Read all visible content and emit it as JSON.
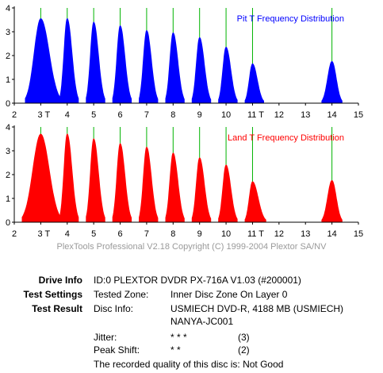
{
  "chart_data": [
    {
      "type": "area",
      "title": "Pit T Frequency Distribution",
      "x_ticks": [
        "2",
        "3 T",
        "4",
        "5",
        "6",
        "7",
        "8",
        "9",
        "10",
        "11 T",
        "12",
        "13",
        "14",
        "15"
      ],
      "y_ticks": [
        "0",
        "1",
        "2",
        "3",
        "4"
      ],
      "xlim": [
        2,
        15
      ],
      "ylim": [
        0,
        4
      ],
      "grid": false,
      "legend_position": "top-right",
      "color": "#0000ff",
      "marker_lines_at": [
        3,
        4,
        5,
        6,
        7,
        8,
        9,
        10,
        11,
        14
      ],
      "peaks": [
        {
          "x": 3,
          "height": 3.55,
          "from": 2.42,
          "to": 3.75
        },
        {
          "x": 4,
          "height": 3.55,
          "from": 3.72,
          "to": 4.42
        },
        {
          "x": 5,
          "height": 3.4,
          "from": 4.72,
          "to": 5.42
        },
        {
          "x": 6,
          "height": 3.25,
          "from": 5.72,
          "to": 6.42
        },
        {
          "x": 7,
          "height": 3.05,
          "from": 6.72,
          "to": 7.42
        },
        {
          "x": 8,
          "height": 2.95,
          "from": 7.72,
          "to": 8.42
        },
        {
          "x": 9,
          "height": 2.75,
          "from": 8.72,
          "to": 9.42
        },
        {
          "x": 10,
          "height": 2.35,
          "from": 9.72,
          "to": 10.42
        },
        {
          "x": 11,
          "height": 1.65,
          "from": 10.72,
          "to": 11.42
        },
        {
          "x": 14,
          "height": 1.75,
          "from": 13.62,
          "to": 14.38
        }
      ]
    },
    {
      "type": "area",
      "title": "Land T Frequency Distribution",
      "x_ticks": [
        "2",
        "3 T",
        "4",
        "5",
        "6",
        "7",
        "8",
        "9",
        "10",
        "11 T",
        "12",
        "13",
        "14",
        "15"
      ],
      "y_ticks": [
        "0",
        "1",
        "2",
        "3",
        "4"
      ],
      "xlim": [
        2,
        15
      ],
      "ylim": [
        0,
        4
      ],
      "grid": false,
      "legend_position": "top-right",
      "color": "#ff0000",
      "marker_lines_at": [
        3,
        4,
        5,
        6,
        7,
        8,
        9,
        10,
        11,
        14
      ],
      "peaks": [
        {
          "x": 3,
          "height": 3.7,
          "from": 2.3,
          "to": 3.75
        },
        {
          "x": 4,
          "height": 3.7,
          "from": 3.72,
          "to": 4.42
        },
        {
          "x": 5,
          "height": 3.5,
          "from": 4.72,
          "to": 5.42
        },
        {
          "x": 6,
          "height": 3.3,
          "from": 5.72,
          "to": 6.42
        },
        {
          "x": 7,
          "height": 3.15,
          "from": 6.72,
          "to": 7.42
        },
        {
          "x": 8,
          "height": 2.9,
          "from": 7.72,
          "to": 8.42
        },
        {
          "x": 9,
          "height": 2.7,
          "from": 8.72,
          "to": 9.42
        },
        {
          "x": 10,
          "height": 2.4,
          "from": 9.72,
          "to": 10.42
        },
        {
          "x": 11,
          "height": 1.7,
          "from": 10.72,
          "to": 11.5
        },
        {
          "x": 14,
          "height": 1.75,
          "from": 13.62,
          "to": 14.38
        }
      ]
    }
  ],
  "copyright": "PlexTools Professional V2.18 Copyright (C) 1999-2004 Plextor SA/NV",
  "info": {
    "drive_info_label": "Drive Info",
    "drive_info_value": "ID:0 PLEXTOR DVDR PX-716A V1.03 (#200001)",
    "test_settings_label": "Test Settings",
    "tested_zone_label": "Tested Zone:",
    "tested_zone_value": "Inner Disc Zone On Layer 0",
    "test_result_label": "Test Result",
    "disc_info_label": "Disc Info:",
    "disc_info_value": "USMIECH DVD-R, 4188 MB (USMIECH) NANYA-JC001",
    "jitter_label": "Jitter:",
    "jitter_stars": "* * *",
    "jitter_score": "(3)",
    "peak_shift_label": "Peak Shift:",
    "peak_shift_stars": "* *",
    "peak_shift_score": "(2)",
    "quality_text": "The recorded quality of this disc is: Not Good"
  }
}
